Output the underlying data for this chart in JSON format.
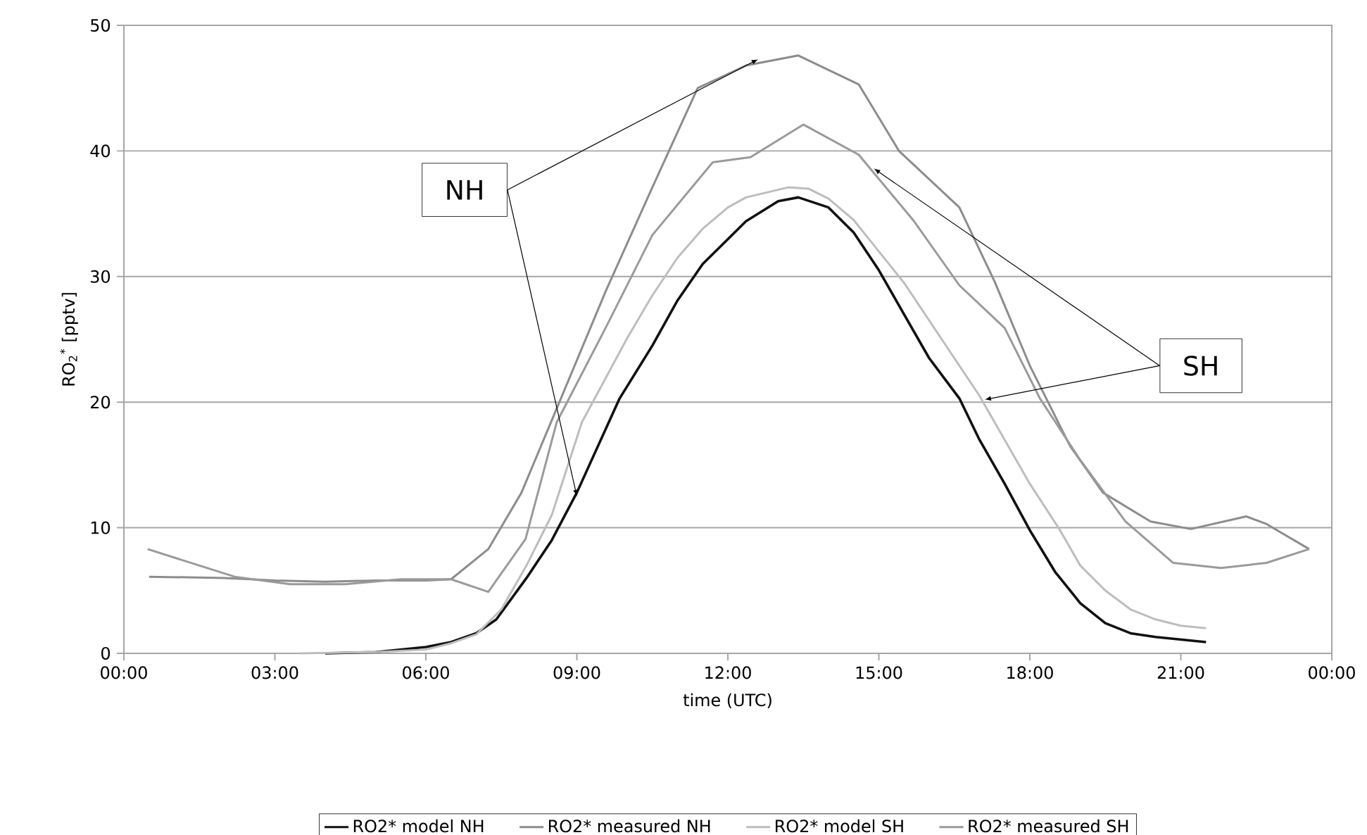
{
  "chart_data": {
    "type": "line",
    "xlabel": "time (UTC)",
    "ylabel": "RO$_{2}$$^{*}$ [pptv]",
    "xlim": [
      0,
      24
    ],
    "ylim": [
      0,
      50
    ],
    "xticks": [
      {
        "value": 0,
        "label": "00:00"
      },
      {
        "value": 3,
        "label": "03:00"
      },
      {
        "value": 6,
        "label": "06:00"
      },
      {
        "value": 9,
        "label": "09:00"
      },
      {
        "value": 12,
        "label": "12:00"
      },
      {
        "value": 15,
        "label": "15:00"
      },
      {
        "value": 18,
        "label": "18:00"
      },
      {
        "value": 21,
        "label": "21:00"
      },
      {
        "value": 24,
        "label": "00:00"
      }
    ],
    "yticks": [
      0,
      10,
      20,
      30,
      40,
      50
    ],
    "grid": "y",
    "legend": "bottom",
    "marker": "none",
    "line_style": "solid",
    "annotations": [
      {
        "text": "NH",
        "x": 12.6,
        "y": 47.3
      },
      {
        "text": "SH",
        "x": 14.9,
        "y": 38.6
      }
    ],
    "series": [
      {
        "name": "RO2* model NH",
        "color": "#111111",
        "x": [
          4,
          5,
          6,
          6.5,
          7,
          7.4,
          8,
          8.5,
          9,
          9.85,
          10.5,
          11,
          11.5,
          12.36,
          13,
          13.4,
          14,
          14.5,
          15,
          15.5,
          16,
          16.6,
          17,
          17.5,
          18,
          18.5,
          19,
          19.5,
          20,
          20.5,
          21,
          21.5
        ],
        "values": [
          0,
          0.1,
          0.5,
          0.9,
          1.6,
          2.7,
          6,
          9,
          12.8,
          20.3,
          24.5,
          28.1,
          31,
          34.4,
          36,
          36.3,
          35.5,
          33.5,
          30.5,
          27,
          23.5,
          20.3,
          17,
          13.5,
          9.8,
          6.5,
          4,
          2.4,
          1.6,
          1.3,
          1.1,
          0.9
        ]
      },
      {
        "name": "RO2* measured NH",
        "color": "#8c8c8c",
        "x": [
          0.5,
          2,
          3,
          4,
          5,
          6,
          6.5,
          7.24,
          7.9,
          8.6,
          9.57,
          10.5,
          11.4,
          12.36,
          13.4,
          14.6,
          15.4,
          16.6,
          17.3,
          18,
          18.8,
          19.45,
          20.4,
          21.2,
          22.3,
          22.7,
          23.55
        ],
        "values": [
          6.1,
          6,
          5.8,
          5.7,
          5.8,
          5.8,
          5.9,
          8.3,
          12.8,
          19.5,
          28.8,
          37.1,
          45,
          46.8,
          47.6,
          45.3,
          40,
          35.5,
          29.6,
          22.9,
          16.5,
          12.8,
          10.5,
          9.9,
          10.9,
          10.3,
          8.3
        ]
      },
      {
        "name": "RO2* model SH",
        "color": "#bdbdbd",
        "x": [
          3.5,
          5,
          6,
          6.5,
          7,
          7.5,
          8,
          8.5,
          9.1,
          10,
          10.5,
          11,
          11.5,
          12,
          12.36,
          13.2,
          13.6,
          14,
          14.5,
          15,
          15.5,
          16,
          16.5,
          17,
          17.5,
          18,
          18.6,
          19,
          19.5,
          20,
          20.5,
          21,
          21.5
        ],
        "values": [
          0,
          0.1,
          0.3,
          0.8,
          1.5,
          3.5,
          7,
          11,
          18.4,
          25.1,
          28.5,
          31.5,
          33.8,
          35.5,
          36.3,
          37.1,
          37,
          36.2,
          34.5,
          32,
          29.5,
          26.5,
          23.5,
          20.5,
          17,
          13.5,
          9.8,
          7,
          5,
          3.5,
          2.7,
          2.2,
          2
        ]
      },
      {
        "name": "RO2* measured SH",
        "color": "#9a9a9a",
        "x": [
          0.47,
          2.2,
          3.3,
          4.4,
          5.5,
          6.5,
          7.24,
          7.98,
          8.6,
          9.57,
          10.5,
          11.7,
          12.45,
          13.5,
          14.6,
          15.7,
          16.6,
          17.5,
          18.2,
          19,
          19.9,
          20.85,
          21.8,
          22.7,
          23.55
        ],
        "values": [
          8.3,
          6.1,
          5.5,
          5.5,
          5.9,
          5.9,
          4.9,
          9.1,
          18.4,
          25.9,
          33.3,
          39.1,
          39.5,
          42.1,
          39.7,
          34.4,
          29.3,
          25.9,
          20.3,
          15.4,
          10.5,
          7.2,
          6.8,
          7.2,
          8.3
        ]
      }
    ]
  }
}
